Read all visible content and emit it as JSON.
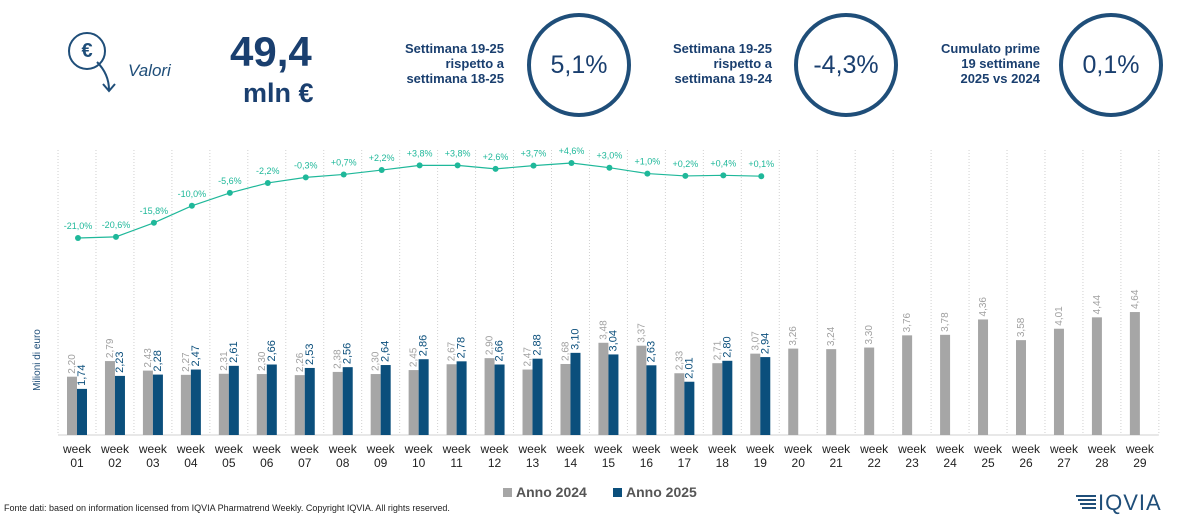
{
  "header": {
    "icon_symbol": "€",
    "label": "Valori",
    "value": "49,4",
    "unit": "mln €"
  },
  "kpis": [
    {
      "lines": [
        "Settimana 19-25",
        "rispetto a",
        "settimana 18-25"
      ],
      "value": "5,1%"
    },
    {
      "lines": [
        "Settimana 19-25",
        "rispetto a",
        "settimana 19-24"
      ],
      "value": "-4,3%"
    },
    {
      "lines": [
        "Cumulato prime",
        "19 settimane",
        "2025 vs 2024"
      ],
      "value": "0,1%"
    }
  ],
  "chart_data": {
    "type": "bar",
    "y_label": "Milioni di euro",
    "legend": "bottom",
    "categories": [
      "week 01",
      "week 02",
      "week 03",
      "week 04",
      "week 05",
      "week 06",
      "week 07",
      "week 08",
      "week 09",
      "week 10",
      "week 11",
      "week 12",
      "week 13",
      "week 14",
      "week 15",
      "week 16",
      "week 17",
      "week 18",
      "week 19",
      "week 20",
      "week 21",
      "week 22",
      "week 23",
      "week 24",
      "week 25",
      "week 26",
      "week 27",
      "week 28",
      "week 29"
    ],
    "series": [
      {
        "name": "Anno 2024",
        "color": "#a6a6a6",
        "values": [
          2.2,
          2.79,
          2.43,
          2.27,
          2.31,
          2.3,
          2.26,
          2.38,
          2.3,
          2.45,
          2.67,
          2.9,
          2.47,
          2.68,
          3.48,
          3.37,
          2.33,
          2.71,
          3.07,
          3.26,
          3.24,
          3.3,
          3.76,
          3.78,
          4.36,
          3.58,
          4.01,
          4.44,
          4.64
        ],
        "value_labels": [
          "2,20",
          "2,79",
          "2,43",
          "2,27",
          "2,31",
          "2,30",
          "2,26",
          "2,38",
          "2,30",
          "2,45",
          "2,67",
          "2,90",
          "2,47",
          "2,68",
          "3,48",
          "3,37",
          "2,33",
          "2,71",
          "3,07",
          "3,26",
          "3,24",
          "3,30",
          "3,76",
          "3,78",
          "4,36",
          "3,58",
          "4,01",
          "4,44",
          "4,64"
        ]
      },
      {
        "name": "Anno 2025",
        "color": "#0b4f7c",
        "values": [
          1.74,
          2.23,
          2.28,
          2.47,
          2.61,
          2.66,
          2.53,
          2.56,
          2.64,
          2.86,
          2.78,
          2.66,
          2.88,
          3.1,
          3.04,
          2.63,
          2.01,
          2.8,
          2.94,
          null,
          null,
          null,
          null,
          null,
          null,
          null,
          null,
          null,
          null
        ],
        "value_labels": [
          "1,74",
          "2,23",
          "2,28",
          "2,47",
          "2,61",
          "2,66",
          "2,53",
          "2,56",
          "2,64",
          "2,86",
          "2,78",
          "2,66",
          "2,88",
          "3,10",
          "3,04",
          "2,63",
          "2,01",
          "2,80",
          "2,94",
          null,
          null,
          null,
          null,
          null,
          null,
          null,
          null,
          null,
          null
        ]
      }
    ],
    "growth_line": {
      "color": "#1fb89a",
      "values": [
        -21.0,
        -20.6,
        -15.8,
        -10.0,
        -5.6,
        -2.2,
        -0.3,
        0.7,
        2.2,
        3.8,
        3.8,
        2.6,
        3.7,
        4.6,
        3.0,
        1.0,
        0.2,
        0.4,
        0.1
      ],
      "value_labels": [
        "-21,0%",
        "-20,6%",
        "-15,8%",
        "-10,0%",
        "-5,6%",
        "-2,2%",
        "-0,3%",
        "+0,7%",
        "+2,2%",
        "+3,8%",
        "+3,8%",
        "+2,6%",
        "+3,7%",
        "+4,6%",
        "+3,0%",
        "+1,0%",
        "+0,2%",
        "+0,4%",
        "+0,1%"
      ]
    }
  },
  "footer": {
    "source": "Fonte dati: based on information licensed from IQVIA Pharmatrend Weekly. Copyright IQVIA. All rights reserved.",
    "logo": "IQVIA"
  }
}
